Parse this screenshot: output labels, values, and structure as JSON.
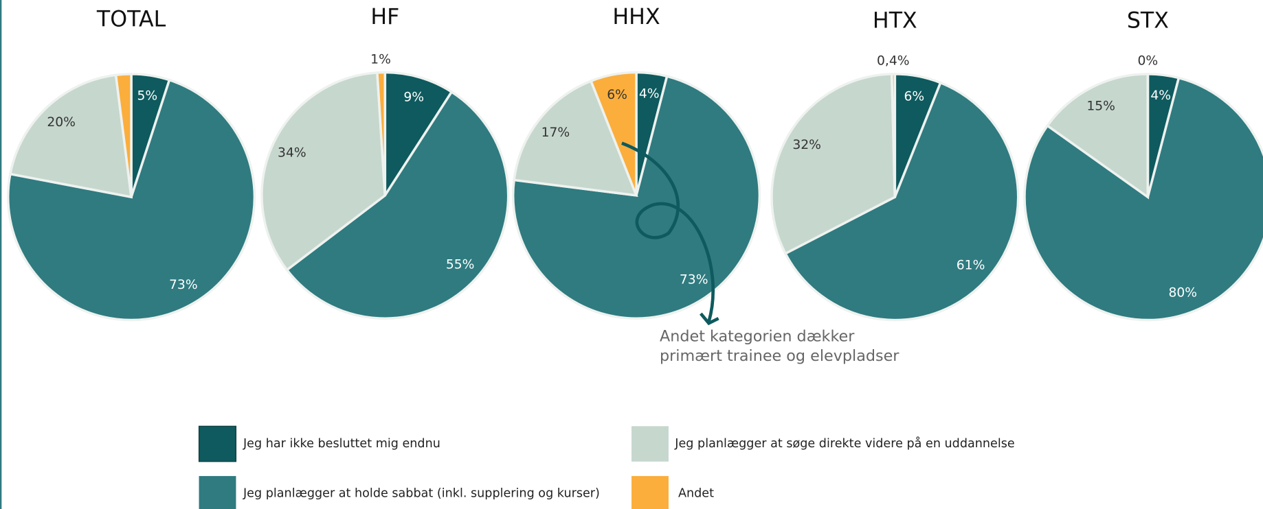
{
  "legend": {
    "categories": [
      "Jeg har ikke besluttet mig endnu",
      "Jeg planlægger at holde sabbat (inkl. supplering og kurser)",
      "Jeg planlægger at søge direkte videre på en uddannelse",
      "Andet"
    ],
    "colors": [
      "#0e5a5e",
      "#2f7b80",
      "#c6d7ce",
      "#fbae3c"
    ]
  },
  "chart_data": [
    {
      "type": "pie",
      "title": "TOTAL",
      "values": [
        5,
        73,
        20,
        2
      ],
      "value_labels": [
        "5%",
        "73%",
        "20%",
        null
      ]
    },
    {
      "type": "pie",
      "title": "HF",
      "values": [
        9,
        55,
        34,
        1
      ],
      "value_labels": [
        "9%",
        "55%",
        "34%",
        "1%"
      ]
    },
    {
      "type": "pie",
      "title": "HHX",
      "values": [
        4,
        73,
        17,
        6
      ],
      "value_labels": [
        "4%",
        "73%",
        "17%",
        "6%"
      ],
      "annotation": [
        "Andet kategorien dækker",
        "primært trainee og elevpladser"
      ]
    },
    {
      "type": "pie",
      "title": "HTX",
      "values": [
        6,
        61,
        32,
        0.4
      ],
      "value_labels": [
        "6%",
        "61%",
        "32%",
        "0,4%"
      ]
    },
    {
      "type": "pie",
      "title": "STX",
      "values": [
        4,
        80,
        15,
        0
      ],
      "value_labels": [
        "4%",
        "80%",
        "15%",
        "0%"
      ]
    }
  ]
}
